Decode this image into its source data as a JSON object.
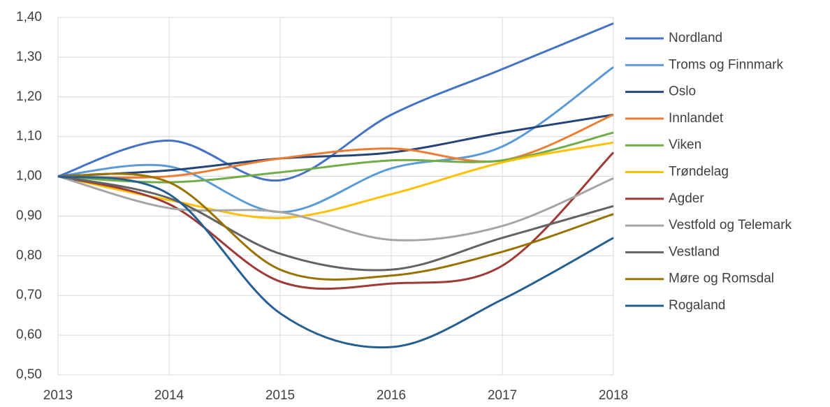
{
  "chart_data": {
    "type": "line",
    "smooth": true,
    "grid": true,
    "x": [
      2013,
      2014,
      2015,
      2016,
      2017,
      2018
    ],
    "xlim": [
      2013,
      2018
    ],
    "xticks": [
      2013,
      2014,
      2015,
      2016,
      2017,
      2018
    ],
    "ylim": [
      0.5,
      1.4
    ],
    "yticks": [
      {
        "value": 0.5,
        "label": "0,50"
      },
      {
        "value": 0.6,
        "label": "0,60"
      },
      {
        "value": 0.7,
        "label": "0,70"
      },
      {
        "value": 0.8,
        "label": "0,80"
      },
      {
        "value": 0.9,
        "label": "0,90"
      },
      {
        "value": 1.0,
        "label": "1,00"
      },
      {
        "value": 1.1,
        "label": "1,10"
      },
      {
        "value": 1.2,
        "label": "1,20"
      },
      {
        "value": 1.3,
        "label": "1,30"
      },
      {
        "value": 1.4,
        "label": "1,40"
      }
    ],
    "legend": "right",
    "series": [
      {
        "name": "Nordland",
        "color": "#4472c4",
        "values": [
          1.0,
          1.09,
          0.99,
          1.155,
          1.27,
          1.385
        ]
      },
      {
        "name": "Troms og Finnmark",
        "color": "#5b9bd5",
        "values": [
          1.0,
          1.025,
          0.91,
          1.02,
          1.075,
          1.275
        ]
      },
      {
        "name": "Oslo",
        "color": "#264478",
        "values": [
          1.0,
          1.015,
          1.045,
          1.06,
          1.11,
          1.155
        ]
      },
      {
        "name": "Innlandet",
        "color": "#ed7d31",
        "values": [
          1.0,
          1.0,
          1.045,
          1.07,
          1.04,
          1.155
        ]
      },
      {
        "name": "Viken",
        "color": "#70ad47",
        "values": [
          1.0,
          0.985,
          1.01,
          1.04,
          1.04,
          1.11
        ]
      },
      {
        "name": "Trøndelag",
        "color": "#ffc000",
        "values": [
          1.0,
          0.94,
          0.895,
          0.955,
          1.035,
          1.085
        ]
      },
      {
        "name": "Agder",
        "color": "#9e3a38",
        "values": [
          1.0,
          0.93,
          0.735,
          0.73,
          0.775,
          1.06
        ]
      },
      {
        "name": "Vestfold og Telemark",
        "color": "#a5a5a5",
        "values": [
          1.0,
          0.92,
          0.91,
          0.84,
          0.875,
          0.995
        ]
      },
      {
        "name": "Vestland",
        "color": "#636363",
        "values": [
          1.0,
          0.945,
          0.805,
          0.765,
          0.845,
          0.925
        ]
      },
      {
        "name": "Møre og Romsdal",
        "color": "#997300",
        "values": [
          1.0,
          0.985,
          0.765,
          0.75,
          0.81,
          0.905
        ]
      },
      {
        "name": "Rogaland",
        "color": "#255e91",
        "values": [
          1.0,
          0.955,
          0.655,
          0.57,
          0.69,
          0.845
        ]
      }
    ]
  }
}
